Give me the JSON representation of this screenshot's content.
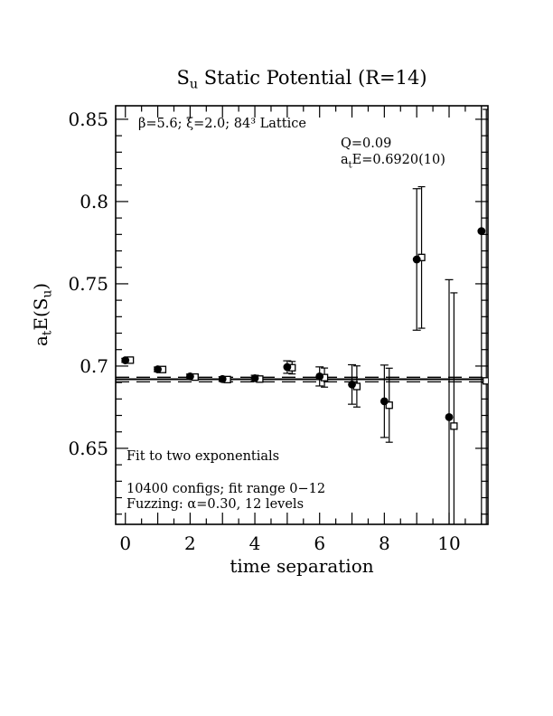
{
  "page": {
    "background": "#ffffff",
    "ink_color": "#000000"
  },
  "chart_data": {
    "type": "scatter",
    "title_segments": [
      {
        "t": "S"
      },
      {
        "t": "u",
        "sub": true
      },
      {
        "t": " Static Potential (R=14)"
      }
    ],
    "xlabel": "time separation",
    "ylabel_segments": [
      {
        "t": "a"
      },
      {
        "t": "t",
        "sub": true
      },
      {
        "t": "E(S"
      },
      {
        "t": "u",
        "sub": true
      },
      {
        "t": ")"
      }
    ],
    "xlim": [
      -0.3,
      11.2
    ],
    "ylim": [
      0.6038,
      0.8582
    ],
    "grid": false,
    "x_minor_step": 0.5,
    "x_minor_range": [
      0,
      11
    ],
    "x_major_ticks": [
      0,
      1,
      2,
      3,
      4,
      5,
      6,
      7,
      8,
      9,
      10,
      11
    ],
    "x_tick_labels": [
      {
        "v": 0,
        "label": "0"
      },
      {
        "v": 2,
        "label": "2"
      },
      {
        "v": 4,
        "label": "4"
      },
      {
        "v": 6,
        "label": "6"
      },
      {
        "v": 8,
        "label": "8"
      },
      {
        "v": 10,
        "label": "10"
      }
    ],
    "y_minor_step": 0.01,
    "y_minor_range": [
      0.61,
      0.85
    ],
    "y_major_ticks": [
      0.65,
      0.7,
      0.75,
      0.8,
      0.85
    ],
    "y_tick_labels": [
      {
        "v": 0.85,
        "label": "0.85"
      },
      {
        "v": 0.8,
        "label": "0.8"
      },
      {
        "v": 0.75,
        "label": "0.75"
      },
      {
        "v": 0.7,
        "label": "0.7"
      },
      {
        "v": 0.65,
        "label": "0.65"
      }
    ],
    "fit": {
      "value": 0.692,
      "band_low": 0.6904,
      "band_high": 0.6932
    },
    "series": [
      {
        "name": "filled-circles",
        "marker": "filled-circle",
        "x_offset": 0,
        "x": [
          0,
          1,
          2,
          3,
          4,
          5,
          6,
          7,
          8,
          9,
          10,
          11
        ],
        "y": [
          0.7035,
          0.698,
          0.6937,
          0.6921,
          0.6926,
          0.6994,
          0.6937,
          0.6888,
          0.6786,
          0.7648,
          0.669,
          0.782
        ],
        "err": [
          0.0012,
          0.0014,
          0.0014,
          0.0014,
          0.0018,
          0.0038,
          0.0058,
          0.012,
          0.022,
          0.043,
          0.0835,
          0.2
        ]
      },
      {
        "name": "open-squares",
        "marker": "open-square",
        "x_offset": 0.15,
        "x": [
          0,
          1,
          2,
          3,
          4,
          5,
          6,
          7,
          8,
          9,
          10,
          11
        ],
        "y": [
          0.7036,
          0.6979,
          0.6933,
          0.6918,
          0.6921,
          0.699,
          0.693,
          0.6876,
          0.6762,
          0.766,
          0.6635,
          0.691
        ],
        "err": [
          0.0012,
          0.0014,
          0.0014,
          0.0014,
          0.0018,
          0.0038,
          0.0058,
          0.0125,
          0.0225,
          0.043,
          0.081,
          0.165
        ]
      }
    ],
    "annotations": {
      "lattice_info": "β=5.6; ξ=2.0; 84³ Lattice",
      "q_value": "Q=0.09",
      "atE_segments": [
        {
          "t": "a"
        },
        {
          "t": "t",
          "sub": true
        },
        {
          "t": "E=0.6920(10)"
        }
      ],
      "fit_note": "Fit to two exponentials",
      "configs_note": "10400 configs; fit range 0−12",
      "fuzzing_note": "Fuzzing: α=0.30, 12 levels"
    }
  }
}
